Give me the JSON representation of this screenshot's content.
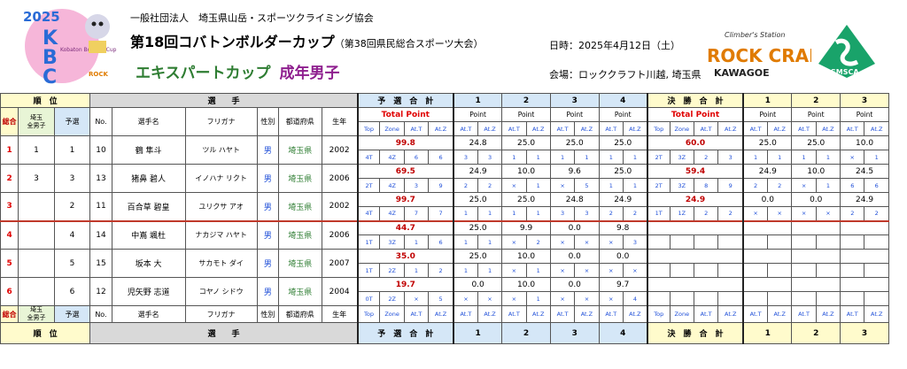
{
  "header": {
    "org": "一般社団法人　埼玉県山岳・スポーツクライミング協会",
    "title": "第18回コバトンボルダーカップ",
    "title_sub": "（第38回県民総合スポーツ大会）",
    "subtitle": "エキスパートカップ",
    "category": "成年男子",
    "date": "日時：2025年4月12日（土）",
    "venue": "会場：ロッククラフト川越, 埼玉県"
  },
  "logos": {
    "kbc_year": "2025",
    "kbc_letters": "KBC",
    "kbc_text": "Kobaton Boulder Cup",
    "rock_top": "Climber's Station",
    "rock_main": "ROCK CRAFT",
    "rock_sub": "KAWAGOE",
    "smsca": "SMSCA"
  },
  "table": {
    "h_rank": "順　位",
    "h_player": "選　　手",
    "h_qual": "予　選　合　計",
    "h_final": "決　勝　合　計",
    "h1": "1",
    "h2": "2",
    "h3": "3",
    "h4": "4",
    "c_total": "総合",
    "c_pref": "埼玉\n県男子",
    "c_pref_a": "埼玉",
    "c_pref_b": "全男子",
    "c_qual": "予選",
    "c_no": "No.",
    "c_name": "選手名",
    "c_kana": "フリガナ",
    "c_sex": "性別",
    "c_prefecture": "都道府県",
    "c_year": "生年",
    "total_point": "Total Point",
    "point": "Point",
    "l_top": "Top",
    "l_zone": "Zone",
    "l_att": "At.T",
    "l_atz": "At.Z",
    "f_rank": "順　位",
    "f_player": "選　　手"
  },
  "rows": [
    {
      "rank": "1",
      "pref": "1",
      "qual": "1",
      "no": "10",
      "name": "鶴 隼斗",
      "kana": "ツル ハヤト",
      "sex": "男",
      "prefecture": "埼玉県",
      "year": "2002",
      "q_total": "99.8",
      "q_sub": [
        "4T",
        "4Z",
        "6",
        "6"
      ],
      "q_pts": [
        "24.8",
        "25.0",
        "25.0",
        "25.0"
      ],
      "q_subs": [
        [
          "3",
          "3"
        ],
        [
          "1",
          "1"
        ],
        [
          "1",
          "1"
        ],
        [
          "1",
          "1"
        ]
      ],
      "f_total": "60.0",
      "f_sub": [
        "2T",
        "3Z",
        "2",
        "3"
      ],
      "f_pts": [
        "25.0",
        "25.0",
        "10.0"
      ],
      "f_subs": [
        [
          "1",
          "1"
        ],
        [
          "1",
          "1"
        ],
        [
          "×",
          "1"
        ]
      ]
    },
    {
      "rank": "2",
      "pref": "3",
      "qual": "3",
      "no": "13",
      "name": "猪鼻 碧人",
      "kana": "イノハナ リクト",
      "sex": "男",
      "prefecture": "埼玉県",
      "year": "2006",
      "q_total": "69.5",
      "q_sub": [
        "2T",
        "4Z",
        "3",
        "9"
      ],
      "q_pts": [
        "24.9",
        "10.0",
        "9.6",
        "25.0"
      ],
      "q_subs": [
        [
          "2",
          "2"
        ],
        [
          "×",
          "1"
        ],
        [
          "×",
          "5"
        ],
        [
          "1",
          "1"
        ]
      ],
      "f_total": "59.4",
      "f_sub": [
        "2T",
        "3Z",
        "8",
        "9"
      ],
      "f_pts": [
        "24.9",
        "10.0",
        "24.5"
      ],
      "f_subs": [
        [
          "2",
          "2"
        ],
        [
          "×",
          "1"
        ],
        [
          "6",
          "6"
        ]
      ]
    },
    {
      "rank": "3",
      "pref": "",
      "qual": "2",
      "no": "11",
      "name": "百合草 碧皇",
      "kana": "ユリクサ アオ",
      "sex": "男",
      "prefecture": "埼玉県",
      "year": "2002",
      "q_total": "99.7",
      "q_sub": [
        "4T",
        "4Z",
        "7",
        "7"
      ],
      "q_pts": [
        "25.0",
        "25.0",
        "24.8",
        "24.9"
      ],
      "q_subs": [
        [
          "1",
          "1"
        ],
        [
          "1",
          "1"
        ],
        [
          "3",
          "3"
        ],
        [
          "2",
          "2"
        ]
      ],
      "f_total": "24.9",
      "f_sub": [
        "1T",
        "1Z",
        "2",
        "2"
      ],
      "f_pts": [
        "0.0",
        "0.0",
        "24.9"
      ],
      "f_subs": [
        [
          "×",
          "×"
        ],
        [
          "×",
          "×"
        ],
        [
          "2",
          "2"
        ]
      ]
    },
    {
      "rank": "4",
      "pref": "",
      "qual": "4",
      "no": "14",
      "name": "中嶌 颯杜",
      "kana": "ナカジマ ハヤト",
      "sex": "男",
      "prefecture": "埼玉県",
      "year": "2006",
      "q_total": "44.7",
      "q_sub": [
        "1T",
        "3Z",
        "1",
        "6"
      ],
      "q_pts": [
        "25.0",
        "9.9",
        "0.0",
        "9.8"
      ],
      "q_subs": [
        [
          "1",
          "1"
        ],
        [
          "×",
          "2"
        ],
        [
          "×",
          "×"
        ],
        [
          "×",
          "3"
        ]
      ],
      "f_total": "",
      "f_sub": [
        "",
        "",
        "",
        ""
      ],
      "f_pts": [
        "",
        "",
        ""
      ],
      "f_subs": [
        [
          "",
          ""
        ],
        [
          "",
          ""
        ],
        [
          "",
          ""
        ]
      ]
    },
    {
      "rank": "5",
      "pref": "",
      "qual": "5",
      "no": "15",
      "name": "坂本 大",
      "kana": "サカモト ダイ",
      "sex": "男",
      "prefecture": "埼玉県",
      "year": "2007",
      "q_total": "35.0",
      "q_sub": [
        "1T",
        "2Z",
        "1",
        "2"
      ],
      "q_pts": [
        "25.0",
        "10.0",
        "0.0",
        "0.0"
      ],
      "q_subs": [
        [
          "1",
          "1"
        ],
        [
          "×",
          "1"
        ],
        [
          "×",
          "×"
        ],
        [
          "×",
          "×"
        ]
      ],
      "f_total": "",
      "f_sub": [
        "",
        "",
        "",
        ""
      ],
      "f_pts": [
        "",
        "",
        ""
      ],
      "f_subs": [
        [
          "",
          ""
        ],
        [
          "",
          ""
        ],
        [
          "",
          ""
        ]
      ]
    },
    {
      "rank": "6",
      "pref": "",
      "qual": "6",
      "no": "12",
      "name": "児矢野 志道",
      "kana": "コヤノ シドウ",
      "sex": "男",
      "prefecture": "埼玉県",
      "year": "2004",
      "q_total": "19.7",
      "q_sub": [
        "0T",
        "2Z",
        "×",
        "5"
      ],
      "q_pts": [
        "0.0",
        "10.0",
        "0.0",
        "9.7"
      ],
      "q_subs": [
        [
          "×",
          "×"
        ],
        [
          "×",
          "1"
        ],
        [
          "×",
          "×"
        ],
        [
          "×",
          "4"
        ]
      ],
      "f_total": "",
      "f_sub": [
        "",
        "",
        "",
        ""
      ],
      "f_pts": [
        "",
        "",
        ""
      ],
      "f_subs": [
        [
          "",
          ""
        ],
        [
          "",
          ""
        ],
        [
          "",
          ""
        ]
      ]
    }
  ],
  "colors": {
    "rank_red": "#e00000",
    "green": "#2e7d32",
    "blue": "#1f4fd8",
    "header_yellow": "#fffbcc",
    "header_blue": "#d5e7f7",
    "header_gray": "#d9d9d9"
  }
}
